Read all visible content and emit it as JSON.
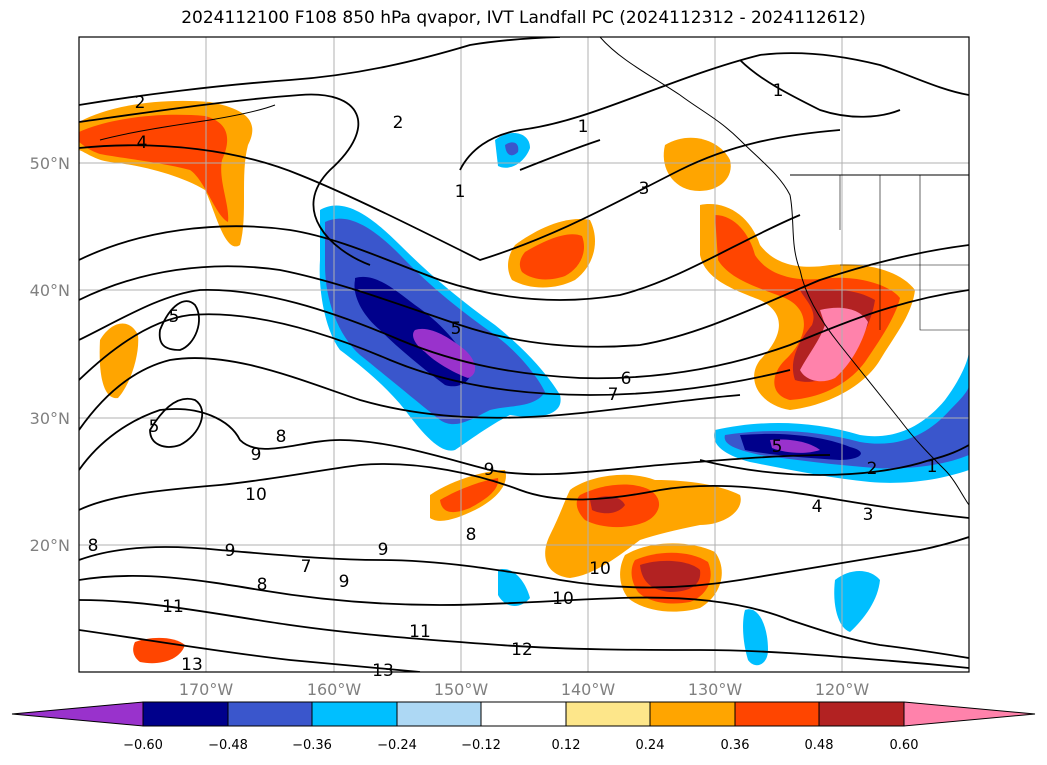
{
  "title": "2024112100 F108 850 hPa qvapor, IVT Landfall PC (2024112312 - 2024112612)",
  "lat_labels": [
    "50°N",
    "40°N",
    "30°N",
    "20°N"
  ],
  "lon_labels": [
    "170°W",
    "160°W",
    "150°W",
    "140°W",
    "130°W",
    "120°W"
  ],
  "colorbar": {
    "ticks": [
      "−0.60",
      "−0.48",
      "−0.36",
      "−0.24",
      "−0.12",
      "0.12",
      "0.24",
      "0.36",
      "0.48",
      "0.60"
    ],
    "colors": [
      "#9932cc",
      "#00008b",
      "#3a56cc",
      "#00bfff",
      "#add8f4",
      "#ffffff",
      "#fde68a",
      "#ffa500",
      "#ff4500",
      "#b22222",
      "#ff82ab"
    ]
  },
  "contour_labels": [
    "2",
    "4",
    "2",
    "1",
    "1",
    "1",
    "3",
    "5",
    "5",
    "5",
    "6",
    "7",
    "8",
    "9",
    "10",
    "9",
    "9",
    "8",
    "9",
    "7",
    "8",
    "8",
    "9",
    "10",
    "11",
    "11",
    "12",
    "13",
    "13",
    "10",
    "5",
    "2",
    "4",
    "3",
    "1"
  ],
  "map_data": {
    "extent_lon": [
      -180,
      -110
    ],
    "extent_lat": [
      10,
      60
    ],
    "field": "850 hPa qvapor principal component",
    "contours": "IVT (black lines)"
  }
}
